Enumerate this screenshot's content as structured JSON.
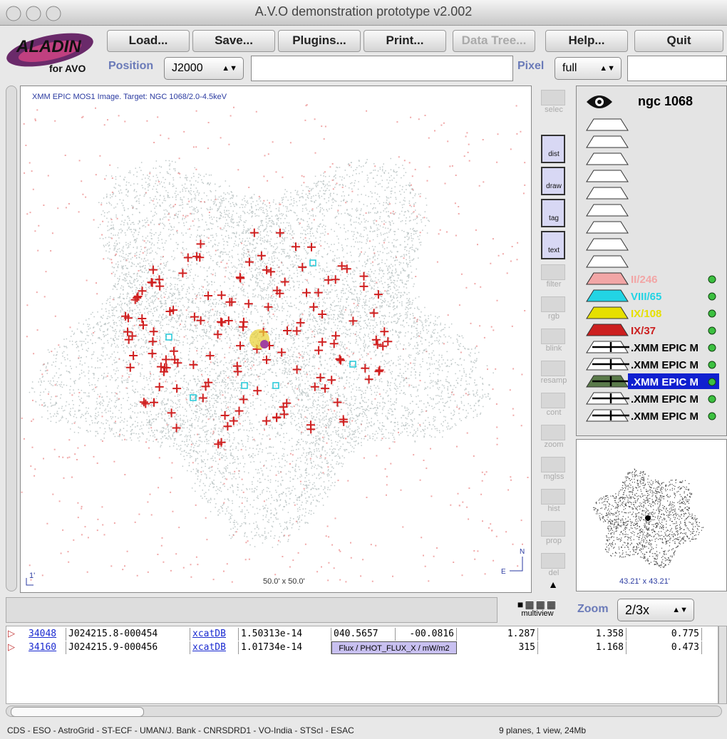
{
  "window": {
    "title": "A.V.O demonstration prototype v2.002"
  },
  "logo": {
    "name": "ALADIN",
    "subtitle": "for AVO"
  },
  "toolbar": {
    "buttons": [
      "Load...",
      "Save...",
      "Plugins...",
      "Print...",
      "Data Tree...",
      "Help...",
      "Quit"
    ]
  },
  "position": {
    "label": "Position",
    "frame": "J2000",
    "pixel_label": "Pixel",
    "pixel_mode": "full"
  },
  "view": {
    "caption": "XMM EPIC MOS1 Image. Target: NGC 1068/2.0-4.5keV",
    "size": "50.0' x 50.0'",
    "scale": "1'",
    "north": "N",
    "east": "E"
  },
  "tools": [
    "selec",
    "dist",
    "draw",
    "tag",
    "text",
    "filter",
    "rgb",
    "blink",
    "resamp",
    "cont",
    "zoom",
    "mglss",
    "hist",
    "prop",
    "del"
  ],
  "multiview": "multiview",
  "stack": {
    "title": "ngc 1068",
    "planes": [
      {
        "label": "II/246",
        "color": "#f2a6a6"
      },
      {
        "label": "VIII/65",
        "color": "#22d4e4"
      },
      {
        "label": "IX/108",
        "color": "#e6e000"
      },
      {
        "label": "IX/37",
        "color": "#cc1f1f"
      },
      {
        "label": ".XMM EPIC M",
        "color": "#000000"
      },
      {
        "label": ".XMM EPIC M",
        "color": "#000000"
      },
      {
        "label": ".XMM EPIC M",
        "color": "#ffffff"
      },
      {
        "label": ".XMM EPIC M",
        "color": "#000000"
      },
      {
        "label": ".XMM EPIC M",
        "color": "#000000"
      }
    ]
  },
  "thumbnail": {
    "size": "43.21' x 43.21'"
  },
  "zoom": {
    "label": "Zoom",
    "value": "2/3x"
  },
  "table": {
    "rows": [
      [
        "34048",
        "J024215.8-000454",
        "xcatDB",
        "1.50313e-14",
        "040.5657",
        "-00.0816",
        "1.287",
        "1.358",
        "0.775"
      ],
      [
        "34160",
        "J024215.9-000456",
        "xcatDB",
        "1.01734e-14",
        "Flux / PHOT_FLUX_X / mW/m2",
        "315",
        "1.168",
        "0.473"
      ]
    ]
  },
  "status": {
    "credits": "CDS - ESO - AstroGrid - ST-ECF - UMAN/J. Bank - CNRSDRD1 - VO-India - STScI - ESAC",
    "info": "9 planes, 1 view, 24Mb"
  }
}
